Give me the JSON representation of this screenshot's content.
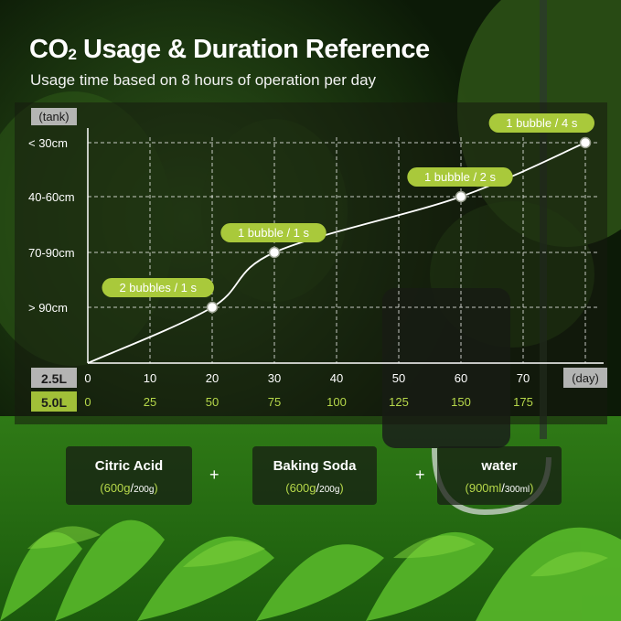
{
  "header": {
    "title_main": "CO",
    "title_sub": "2",
    "title_rest": " Usage & Duration Reference",
    "subtitle": "Usage time based on 8 hours of operation per day"
  },
  "colors": {
    "accent": "#a9c93b",
    "axis_label_bg": "#bdbdbd",
    "panel": "#1a1e16"
  },
  "chart_data": {
    "type": "line",
    "ylabel": "(tank)",
    "xlabel": "(day)",
    "y_categories": [
      "> 90cm",
      "70-90cm",
      "40-60cm",
      "< 30cm"
    ],
    "x_rows": [
      {
        "label": "2.5L",
        "ticks": [
          "0",
          "10",
          "20",
          "30",
          "40",
          "50",
          "60",
          "70"
        ]
      },
      {
        "label": "5.0L",
        "ticks": [
          "0",
          "25",
          "50",
          "75",
          "100",
          "125",
          "150",
          "175"
        ]
      }
    ],
    "xlim": [
      0,
      80
    ],
    "points": [
      {
        "x": 20,
        "y": "> 90cm",
        "label": "2 bubbles / 1 s"
      },
      {
        "x": 30,
        "y": "70-90cm",
        "label": "1 bubble / 1 s"
      },
      {
        "x": 60,
        "y": "40-60cm",
        "label": "1 bubble / 2 s"
      },
      {
        "x": 80,
        "y": "< 30cm",
        "label": "1 bubble / 4 s"
      }
    ],
    "grid": true
  },
  "ingredients": [
    {
      "name": "Citric Acid",
      "open": "(",
      "amount_main": "600g",
      "sep": "/",
      "amount_alt": "200g",
      "close": ")"
    },
    {
      "name": "Baking Soda",
      "open": "(",
      "amount_main": "600g",
      "sep": "/",
      "amount_alt": "200g",
      "close": ")"
    },
    {
      "name": "water",
      "open": "(",
      "amount_main": "900ml",
      "sep": "/",
      "amount_alt": "300ml",
      "close": ")"
    }
  ],
  "plus_sign": "+"
}
